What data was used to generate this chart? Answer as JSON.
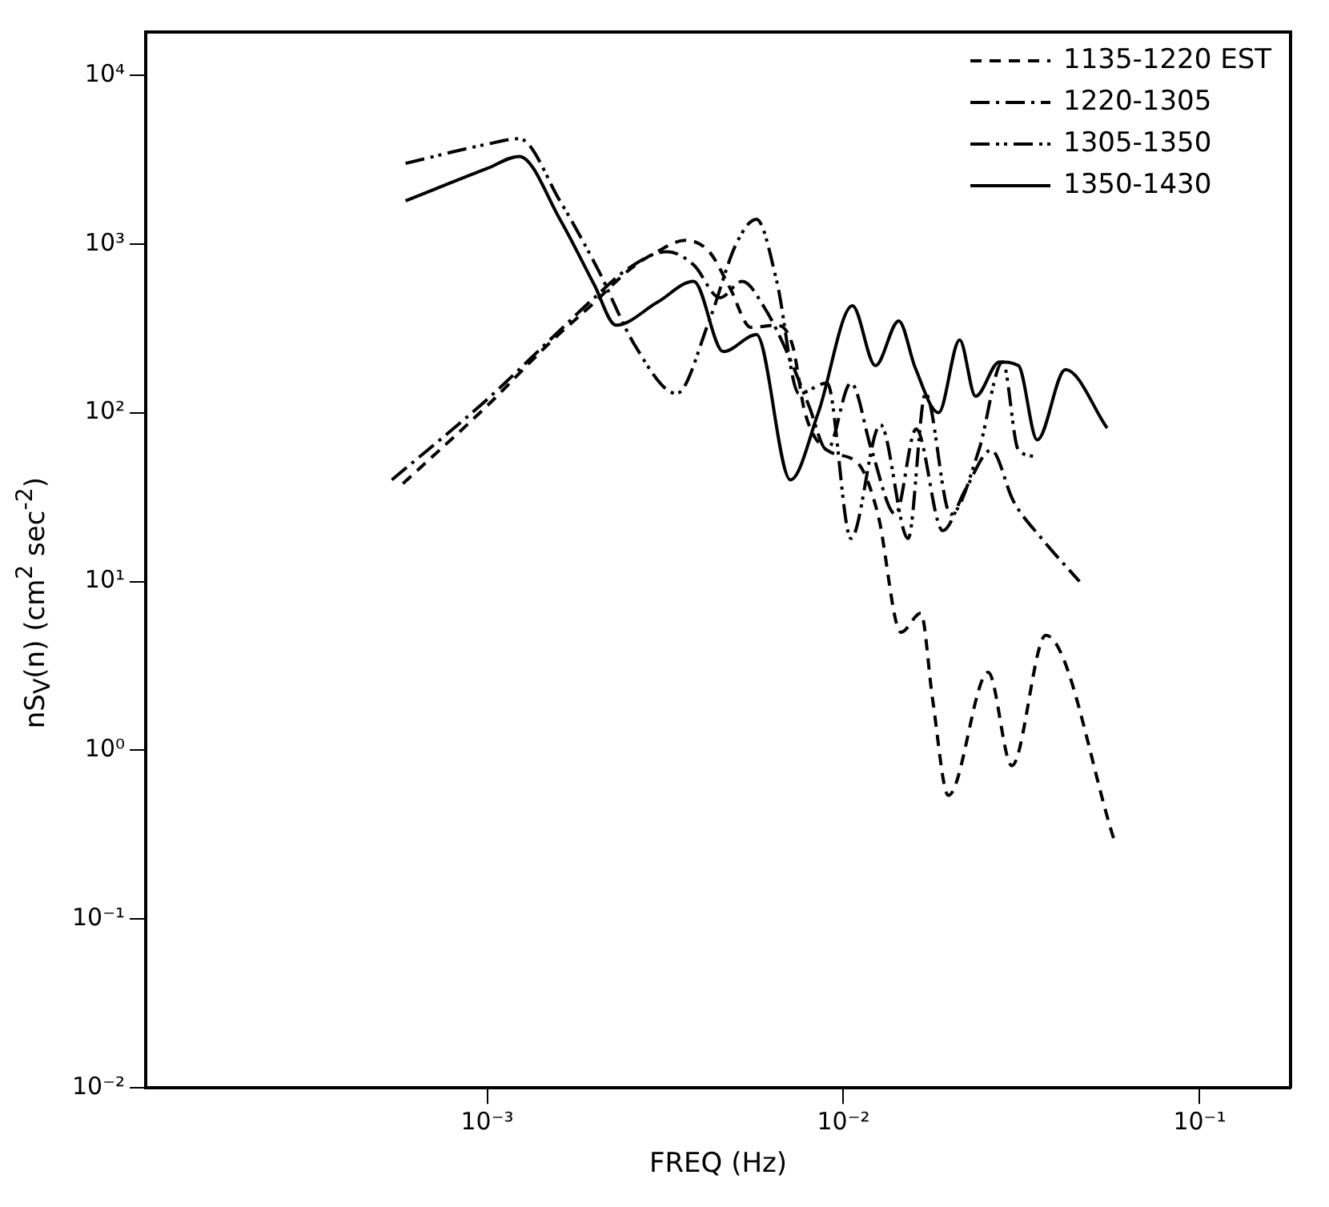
{
  "chart_data": {
    "type": "line",
    "xlabel": "FREQ (Hz)",
    "ylabel": "nS$_{V}$(n) (cm$^{2}$ sec$^{-2}$)",
    "log": "xy",
    "xlim": [
      0.00011,
      0.18
    ],
    "ylim": [
      0.01,
      18000
    ],
    "xticks": [
      {
        "value": 0.001,
        "label": "10⁻³"
      },
      {
        "value": 0.01,
        "label": "10⁻²"
      },
      {
        "value": 0.1,
        "label": "10⁻¹"
      }
    ],
    "yticks": [
      {
        "value": 0.01,
        "label": "10⁻²"
      },
      {
        "value": 0.1,
        "label": "10⁻¹"
      },
      {
        "value": 1,
        "label": "10⁰"
      },
      {
        "value": 10,
        "label": "10¹"
      },
      {
        "value": 100,
        "label": "10²"
      },
      {
        "value": 1000,
        "label": "10³"
      },
      {
        "value": 10000,
        "label": "10⁴"
      }
    ],
    "grid": false,
    "legend": "top right",
    "marker": "none",
    "series": [
      {
        "name": "1135-1220 EST",
        "color": "#000000",
        "line_style": "dashed",
        "x": [
          0.00058,
          0.001,
          0.0015,
          0.002,
          0.0025,
          0.003,
          0.0036,
          0.0042,
          0.0048,
          0.0055,
          0.0065,
          0.0072,
          0.0078,
          0.009,
          0.011,
          0.0125,
          0.0145,
          0.0165,
          0.0178,
          0.0197,
          0.0255,
          0.0297,
          0.037,
          0.058
        ],
        "values": [
          38,
          110,
          260,
          450,
          700,
          900,
          1050,
          900,
          550,
          320,
          330,
          250,
          100,
          60,
          50,
          25,
          5,
          6.5,
          2,
          0.54,
          2.9,
          0.81,
          4.8,
          0.28
        ]
      },
      {
        "name": "1220-1305",
        "color": "#000000",
        "line_style": "dashdot",
        "x": [
          0.00054,
          0.001,
          0.0015,
          0.002,
          0.0025,
          0.0032,
          0.0038,
          0.0045,
          0.0052,
          0.006,
          0.007,
          0.008,
          0.009,
          0.0105,
          0.012,
          0.014,
          0.016,
          0.019,
          0.022,
          0.026,
          0.03,
          0.036,
          0.046
        ],
        "values": [
          40,
          120,
          270,
          480,
          720,
          900,
          750,
          480,
          600,
          420,
          220,
          110,
          60,
          150,
          60,
          25,
          80,
          20,
          35,
          60,
          30,
          18,
          10
        ]
      },
      {
        "name": "1305-1350",
        "color": "#000000",
        "line_style": "dashdotdot",
        "x": [
          0.00059,
          0.001,
          0.00123,
          0.0016,
          0.00205,
          0.0026,
          0.0034,
          0.0042,
          0.005,
          0.0057,
          0.0065,
          0.0075,
          0.009,
          0.0105,
          0.0127,
          0.0152,
          0.017,
          0.02,
          0.024,
          0.028,
          0.031,
          0.035
        ],
        "values": [
          3000,
          3900,
          4200,
          1800,
          700,
          250,
          130,
          350,
          1000,
          1400,
          600,
          130,
          150,
          18,
          85,
          18,
          130,
          25,
          60,
          200,
          60,
          55
        ]
      },
      {
        "name": "1350-1430",
        "color": "#000000",
        "line_style": "solid",
        "x": [
          0.00059,
          0.001,
          0.00123,
          0.0016,
          0.002,
          0.0023,
          0.003,
          0.0038,
          0.0046,
          0.0057,
          0.0071,
          0.0085,
          0.0106,
          0.0123,
          0.0143,
          0.0159,
          0.0185,
          0.0212,
          0.0235,
          0.0274,
          0.031,
          0.035,
          0.042,
          0.055
        ],
        "values": [
          1800,
          2800,
          3300,
          1400,
          570,
          330,
          450,
          600,
          230,
          290,
          40,
          100,
          430,
          190,
          350,
          185,
          100,
          270,
          125,
          200,
          190,
          69,
          180,
          81
        ]
      }
    ]
  }
}
